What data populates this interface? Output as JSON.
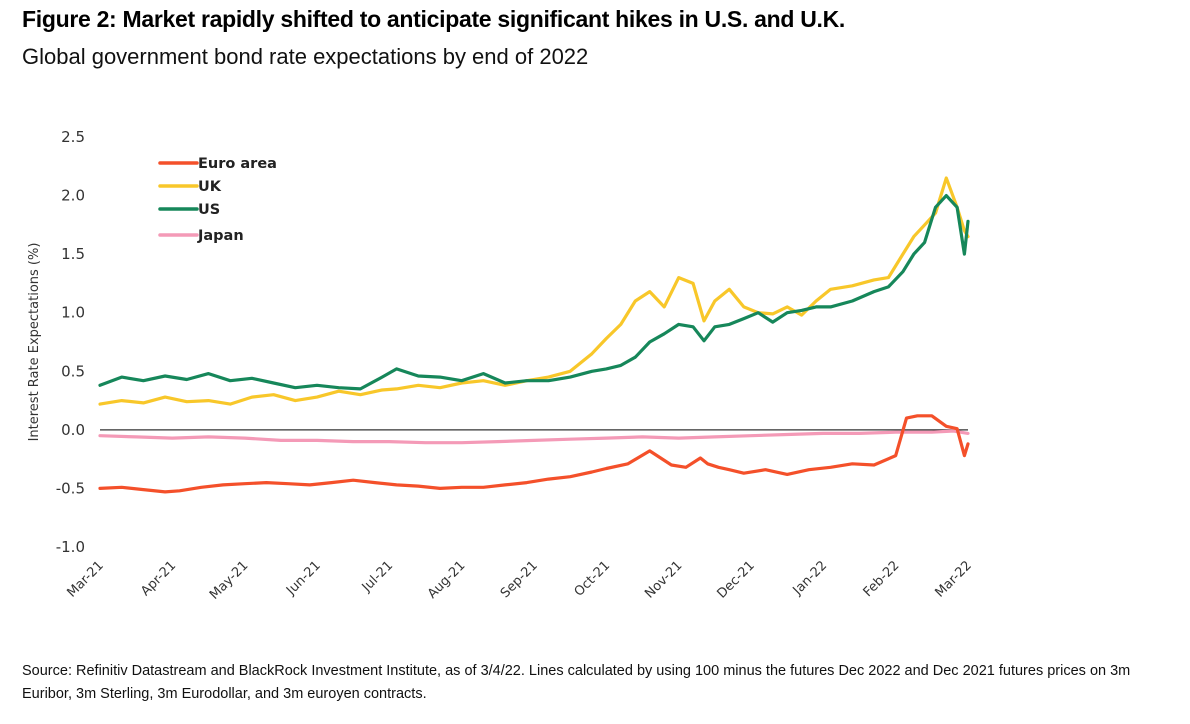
{
  "header": {
    "title": "Figure 2: Market rapidly shifted to anticipate significant hikes in U.S. and U.K.",
    "subtitle": "Global government bond rate expectations by end of 2022"
  },
  "footer": {
    "source": "Source: Refinitiv Datastream and BlackRock Investment Institute, as of 3/4/22. Lines calculated by using 100 minus the futures Dec 2022 and Dec 2021 futures prices on 3m Euribor, 3m Sterling, 3m Eurodollar, and 3m euroyen contracts."
  },
  "chart_data": {
    "type": "line",
    "title": "Figure 2: Market rapidly shifted to anticipate significant hikes in U.S. and U.K.",
    "subtitle": "Global government bond rate expectations by end of 2022",
    "xlabel": "",
    "ylabel": "Interest Rate Expectations (%)",
    "ylim": [
      -1.0,
      2.5
    ],
    "yticks": [
      "2.5",
      "2.0",
      "1.5",
      "1.0",
      "0.5",
      "0.0",
      "-0.5",
      "-1.0"
    ],
    "ytick_values": [
      2.5,
      2.0,
      1.5,
      1.0,
      0.5,
      0.0,
      -0.5,
      -1.0
    ],
    "categories": [
      "Mar-21",
      "Apr-21",
      "May-21",
      "Jun-21",
      "Jul-21",
      "Aug-21",
      "Sep-21",
      "Oct-21",
      "Nov-21",
      "Dec-21",
      "Jan-22",
      "Feb-22",
      "Mar-22"
    ],
    "x_note": "x values are months since Mar-21 (0 = Mar-21, 12 = Mar-22)",
    "zero_line": true,
    "grid": false,
    "legend_position": "top-left",
    "series": [
      {
        "name": "Euro area",
        "color": "#f4502a",
        "x": [
          0,
          0.3,
          0.6,
          0.9,
          1.1,
          1.4,
          1.7,
          2.0,
          2.3,
          2.6,
          2.9,
          3.2,
          3.5,
          3.8,
          4.1,
          4.4,
          4.7,
          5.0,
          5.3,
          5.6,
          5.9,
          6.2,
          6.5,
          6.8,
          7.0,
          7.3,
          7.6,
          7.9,
          8.1,
          8.3,
          8.4,
          8.55,
          8.7,
          8.9,
          9.2,
          9.5,
          9.8,
          10.1,
          10.4,
          10.7,
          11.0,
          11.15,
          11.3,
          11.5,
          11.7,
          11.85,
          11.95,
          12.0
        ],
        "values": [
          -0.5,
          -0.49,
          -0.51,
          -0.53,
          -0.52,
          -0.49,
          -0.47,
          -0.46,
          -0.45,
          -0.46,
          -0.47,
          -0.45,
          -0.43,
          -0.45,
          -0.47,
          -0.48,
          -0.5,
          -0.49,
          -0.49,
          -0.47,
          -0.45,
          -0.42,
          -0.4,
          -0.36,
          -0.33,
          -0.29,
          -0.18,
          -0.3,
          -0.32,
          -0.24,
          -0.29,
          -0.32,
          -0.34,
          -0.37,
          -0.34,
          -0.38,
          -0.34,
          -0.32,
          -0.29,
          -0.3,
          -0.22,
          0.1,
          0.12,
          0.12,
          0.03,
          0.01,
          -0.22,
          -0.12
        ]
      },
      {
        "name": "UK",
        "color": "#f8c72a",
        "x": [
          0,
          0.3,
          0.6,
          0.9,
          1.2,
          1.5,
          1.8,
          2.1,
          2.4,
          2.7,
          3.0,
          3.3,
          3.6,
          3.9,
          4.1,
          4.4,
          4.7,
          5.0,
          5.3,
          5.6,
          5.9,
          6.2,
          6.5,
          6.8,
          7.0,
          7.2,
          7.4,
          7.6,
          7.8,
          8.0,
          8.2,
          8.35,
          8.5,
          8.7,
          8.9,
          9.1,
          9.3,
          9.5,
          9.7,
          9.9,
          10.1,
          10.4,
          10.7,
          10.9,
          11.1,
          11.25,
          11.4,
          11.55,
          11.7,
          11.85,
          11.95,
          12.0
        ],
        "values": [
          0.22,
          0.25,
          0.23,
          0.28,
          0.24,
          0.25,
          0.22,
          0.28,
          0.3,
          0.25,
          0.28,
          0.33,
          0.3,
          0.34,
          0.35,
          0.38,
          0.36,
          0.4,
          0.42,
          0.38,
          0.42,
          0.45,
          0.5,
          0.65,
          0.78,
          0.9,
          1.1,
          1.18,
          1.05,
          1.3,
          1.25,
          0.93,
          1.1,
          1.2,
          1.05,
          1.0,
          0.99,
          1.05,
          0.98,
          1.1,
          1.2,
          1.23,
          1.28,
          1.3,
          1.5,
          1.65,
          1.75,
          1.85,
          2.15,
          1.9,
          1.7,
          1.65
        ]
      },
      {
        "name": "US",
        "color": "#16875a",
        "x": [
          0,
          0.3,
          0.6,
          0.9,
          1.2,
          1.5,
          1.8,
          2.1,
          2.4,
          2.7,
          3.0,
          3.3,
          3.6,
          3.9,
          4.1,
          4.4,
          4.7,
          5.0,
          5.3,
          5.6,
          5.9,
          6.2,
          6.5,
          6.8,
          7.0,
          7.2,
          7.4,
          7.6,
          7.8,
          8.0,
          8.2,
          8.35,
          8.5,
          8.7,
          8.9,
          9.1,
          9.3,
          9.5,
          9.7,
          9.9,
          10.1,
          10.4,
          10.7,
          10.9,
          11.1,
          11.25,
          11.4,
          11.55,
          11.7,
          11.85,
          11.95,
          12.0
        ],
        "values": [
          0.38,
          0.45,
          0.42,
          0.46,
          0.43,
          0.48,
          0.42,
          0.44,
          0.4,
          0.36,
          0.38,
          0.36,
          0.35,
          0.45,
          0.52,
          0.46,
          0.45,
          0.42,
          0.48,
          0.4,
          0.42,
          0.42,
          0.45,
          0.5,
          0.52,
          0.55,
          0.62,
          0.75,
          0.82,
          0.9,
          0.88,
          0.76,
          0.88,
          0.9,
          0.95,
          1.0,
          0.92,
          1.0,
          1.02,
          1.05,
          1.05,
          1.1,
          1.18,
          1.22,
          1.35,
          1.5,
          1.6,
          1.9,
          2.0,
          1.9,
          1.5,
          1.78
        ]
      },
      {
        "name": "Japan",
        "color": "#f49ab7",
        "x": [
          0,
          0.5,
          1.0,
          1.5,
          2.0,
          2.5,
          3.0,
          3.5,
          4.0,
          4.5,
          5.0,
          5.5,
          6.0,
          6.5,
          7.0,
          7.5,
          8.0,
          8.5,
          9.0,
          9.5,
          10.0,
          10.5,
          11.0,
          11.5,
          11.8,
          12.0
        ],
        "values": [
          -0.05,
          -0.06,
          -0.07,
          -0.06,
          -0.07,
          -0.09,
          -0.09,
          -0.1,
          -0.1,
          -0.11,
          -0.11,
          -0.1,
          -0.09,
          -0.08,
          -0.07,
          -0.06,
          -0.07,
          -0.06,
          -0.05,
          -0.04,
          -0.03,
          -0.03,
          -0.02,
          -0.02,
          -0.01,
          -0.03
        ]
      }
    ]
  }
}
